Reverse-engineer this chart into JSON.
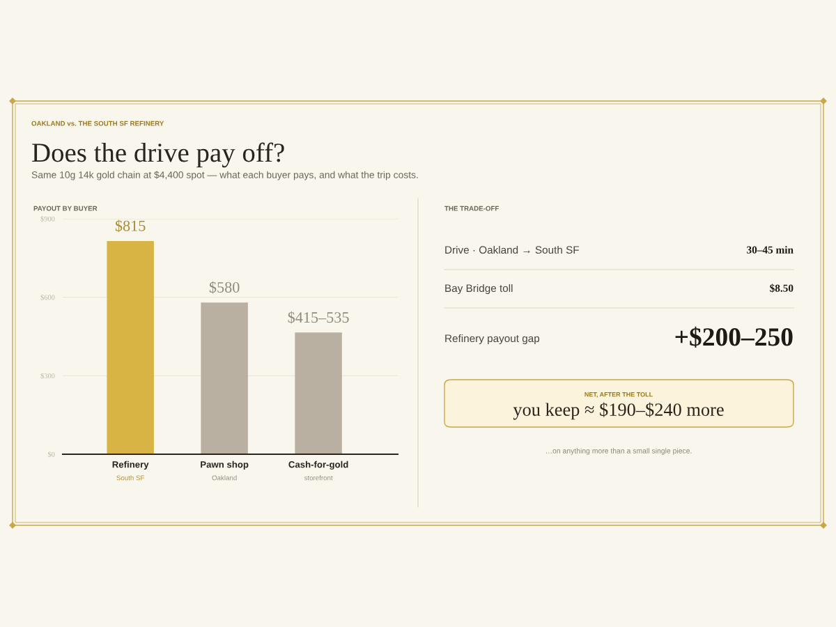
{
  "chart_data": [
    {
      "type": "bar",
      "title": "Does the drive pay off?",
      "subtitle": "Same 10g 14k gold chain at $4,400 spot — what each buyer pays, and what the trip costs.",
      "annotations": [
        "OAKLAND vs. THE SOUTH SF REFINERY",
        "PAYOUT BY BUYER"
      ],
      "categories": [
        "Refinery\nSouth SF",
        "Pawn shop\nOakland",
        "Cash-for-gold\nstorefront"
      ],
      "values": [
        815,
        580,
        465
      ],
      "colors": [
        "#d7b444",
        "#b9b0a2",
        "#b9b0a2"
      ],
      "value_labels": [
        "$815",
        "$580",
        "$415–535"
      ],
      "ylim": [
        0,
        900
      ],
      "yticks": [
        {
          "value": 0,
          "label": "$0"
        },
        {
          "value": 300,
          "label": "$300"
        },
        {
          "value": 600,
          "label": "$600"
        },
        {
          "value": 900,
          "label": "$900"
        }
      ],
      "grid": "y"
    },
    {
      "type": "other",
      "title": "THE TRADE-OFF",
      "annotations": [
        "Drive · Oakland → South SF",
        "30–45 min",
        "Bay Bridge toll",
        "$8.50",
        "Refinery payout gap",
        "+$200–250",
        "NET, AFTER THE TOLL",
        "you keep ≈ $190–$240 more",
        "…on anything more than a small single piece."
      ]
    }
  ]
}
